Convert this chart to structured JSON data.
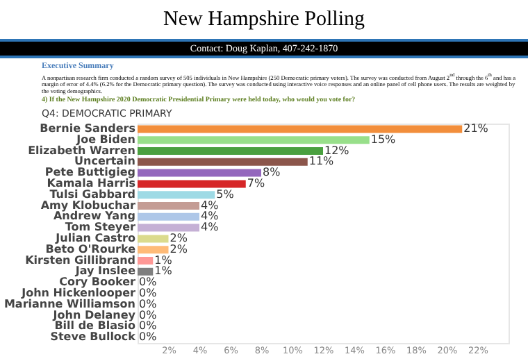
{
  "chart_data": {
    "type": "bar",
    "orientation": "horizontal",
    "title": "New Hampshire Polling",
    "subtitle": "Contact: Doug Kaplan, 407-242-1870",
    "annotations": [
      "Executive Summary",
      "A nonpartisan research firm conducted a random survey of 505 individuals in New Hampshire (250 Democratic primary voters). The survey was conducted from August 2$^{nd}$ through the 6$^{th}$ and has a margin of error of 4.4% (6.2% for the Democratic primary question). The survey was conducted using interactive voice responses and an online panel of cell phone users. The results are weighted by the voting demographics.",
      "4) If the New Hampshire 2020 Democratic Presidential Primary were held today, who would you vote for?",
      "Q4: DEMOCRATIC PRIMARY"
    ],
    "categories": [
      "Bernie Sanders",
      "Joe Biden",
      "Elizabeth Warren",
      "Uncertain",
      "Pete Buttigieg",
      "Kamala Harris",
      "Tulsi Gabbard",
      "Amy Klobuchar",
      "Andrew Yang",
      "Tom Steyer",
      "Julian Castro",
      "Beto O'Rourke",
      "Kirsten Gillibrand",
      "Jay Inslee",
      "Cory Booker",
      "John Hickenlooper",
      "Marianne Williamson",
      "John Delaney",
      "Bill de Blasio",
      "Steve Bullock"
    ],
    "values": [
      21,
      15,
      12,
      11,
      8,
      7,
      5,
      4,
      4,
      4,
      2,
      2,
      1,
      1,
      0,
      0,
      0,
      0,
      0,
      0
    ],
    "value_labels": [
      "21%",
      "15%",
      "12%",
      "11%",
      "8%",
      "7%",
      "5%",
      "4%",
      "4%",
      "4%",
      "2%",
      "2%",
      "1%",
      "1%",
      "0%",
      "0%",
      "0%",
      "0%",
      "0%",
      "0%"
    ],
    "colors": [
      "#f28e3b",
      "#98df8a",
      "#4aa03f",
      "#8c564b",
      "#9467bd",
      "#d62728",
      "#9edae5",
      "#c49c94",
      "#aec7e8",
      "#c5b0d5",
      "#dbdb8d",
      "#ffbb78",
      "#ff9896",
      "#7f7f7f",
      "#f7b6d2",
      "#bcbd22",
      "#17becf",
      "#c7c7c7",
      "#e377c2",
      "#8c6d31"
    ],
    "xlim": [
      0,
      24
    ],
    "xticks": [
      {
        "value": 2,
        "label": "2%"
      },
      {
        "value": 4,
        "label": "4%"
      },
      {
        "value": 6,
        "label": "6%"
      },
      {
        "value": 8,
        "label": "8%"
      },
      {
        "value": 10,
        "label": "10%"
      },
      {
        "value": 12,
        "label": "12%"
      },
      {
        "value": 14,
        "label": "14%"
      },
      {
        "value": 16,
        "label": "16%"
      },
      {
        "value": 18,
        "label": "18%"
      },
      {
        "value": 20,
        "label": "20%"
      },
      {
        "value": 22,
        "label": "22%"
      }
    ],
    "grid": false
  }
}
